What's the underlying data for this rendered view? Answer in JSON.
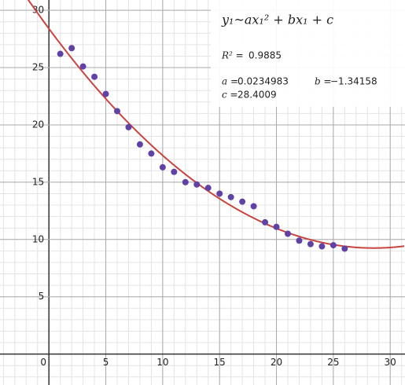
{
  "chart_data": {
    "type": "scatter",
    "x": [
      1,
      2,
      3,
      4,
      5,
      6,
      7,
      8,
      9,
      10,
      11,
      12,
      13,
      14,
      15,
      16,
      17,
      18,
      19,
      20,
      21,
      22,
      23,
      24,
      25,
      26
    ],
    "series": [
      {
        "color": "#6042a6",
        "values": [
          26.2,
          26.7,
          25.1,
          24.2,
          22.7,
          21.2,
          19.8,
          18.3,
          17.5,
          16.3,
          15.9,
          15.0,
          14.8,
          14.5,
          14.0,
          13.7,
          13.3,
          12.9,
          11.5,
          11.1,
          10.5,
          9.9,
          9.6,
          9.4,
          9.5,
          9.2
        ]
      }
    ],
    "fit": {
      "color": "#c74440",
      "equation": "y₁~ax₁² + bx₁ + c",
      "r_squared": {
        "name": "R² =",
        "value": 0.9885
      },
      "params": [
        {
          "name": "a =",
          "value": 0.0234983
        },
        {
          "name": "b =",
          "value": -1.34158,
          "label": "−1.34158"
        },
        {
          "name": "c =",
          "value": 28.4009
        }
      ]
    },
    "xlim": [
      -4.3,
      31.3
    ],
    "ylim": [
      -2.7,
      30.9
    ],
    "xticks": [
      0,
      5,
      10,
      15,
      20,
      25,
      30
    ],
    "yticks": [
      0,
      5,
      10,
      15,
      20,
      25,
      30
    ],
    "grid": true
  }
}
